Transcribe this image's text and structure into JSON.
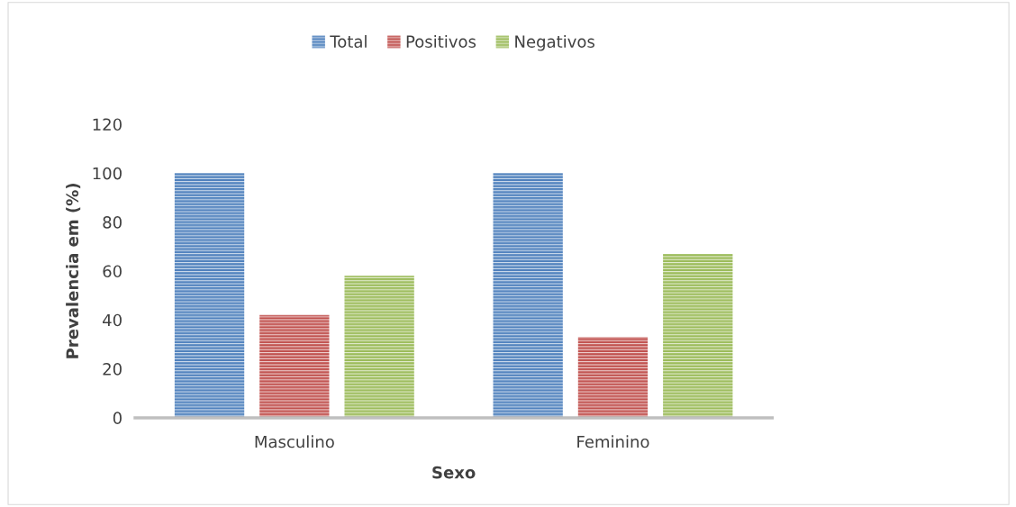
{
  "chart_data": {
    "type": "bar",
    "xlabel": "Sexo",
    "ylabel": "Prevalencia em (%)",
    "categories": [
      "Masculino",
      "Feminino"
    ],
    "series": [
      {
        "name": "Total",
        "color": "#4f81bd",
        "values": [
          100,
          100
        ]
      },
      {
        "name": "Positivos",
        "color": "#c0504d",
        "values": [
          42,
          33
        ]
      },
      {
        "name": "Negativos",
        "color": "#9bbb59",
        "values": [
          58,
          67
        ]
      }
    ],
    "ylim": [
      0,
      120
    ],
    "yticks": [
      0,
      20,
      40,
      60,
      80,
      100,
      120
    ],
    "grid": false,
    "legend": "top"
  }
}
